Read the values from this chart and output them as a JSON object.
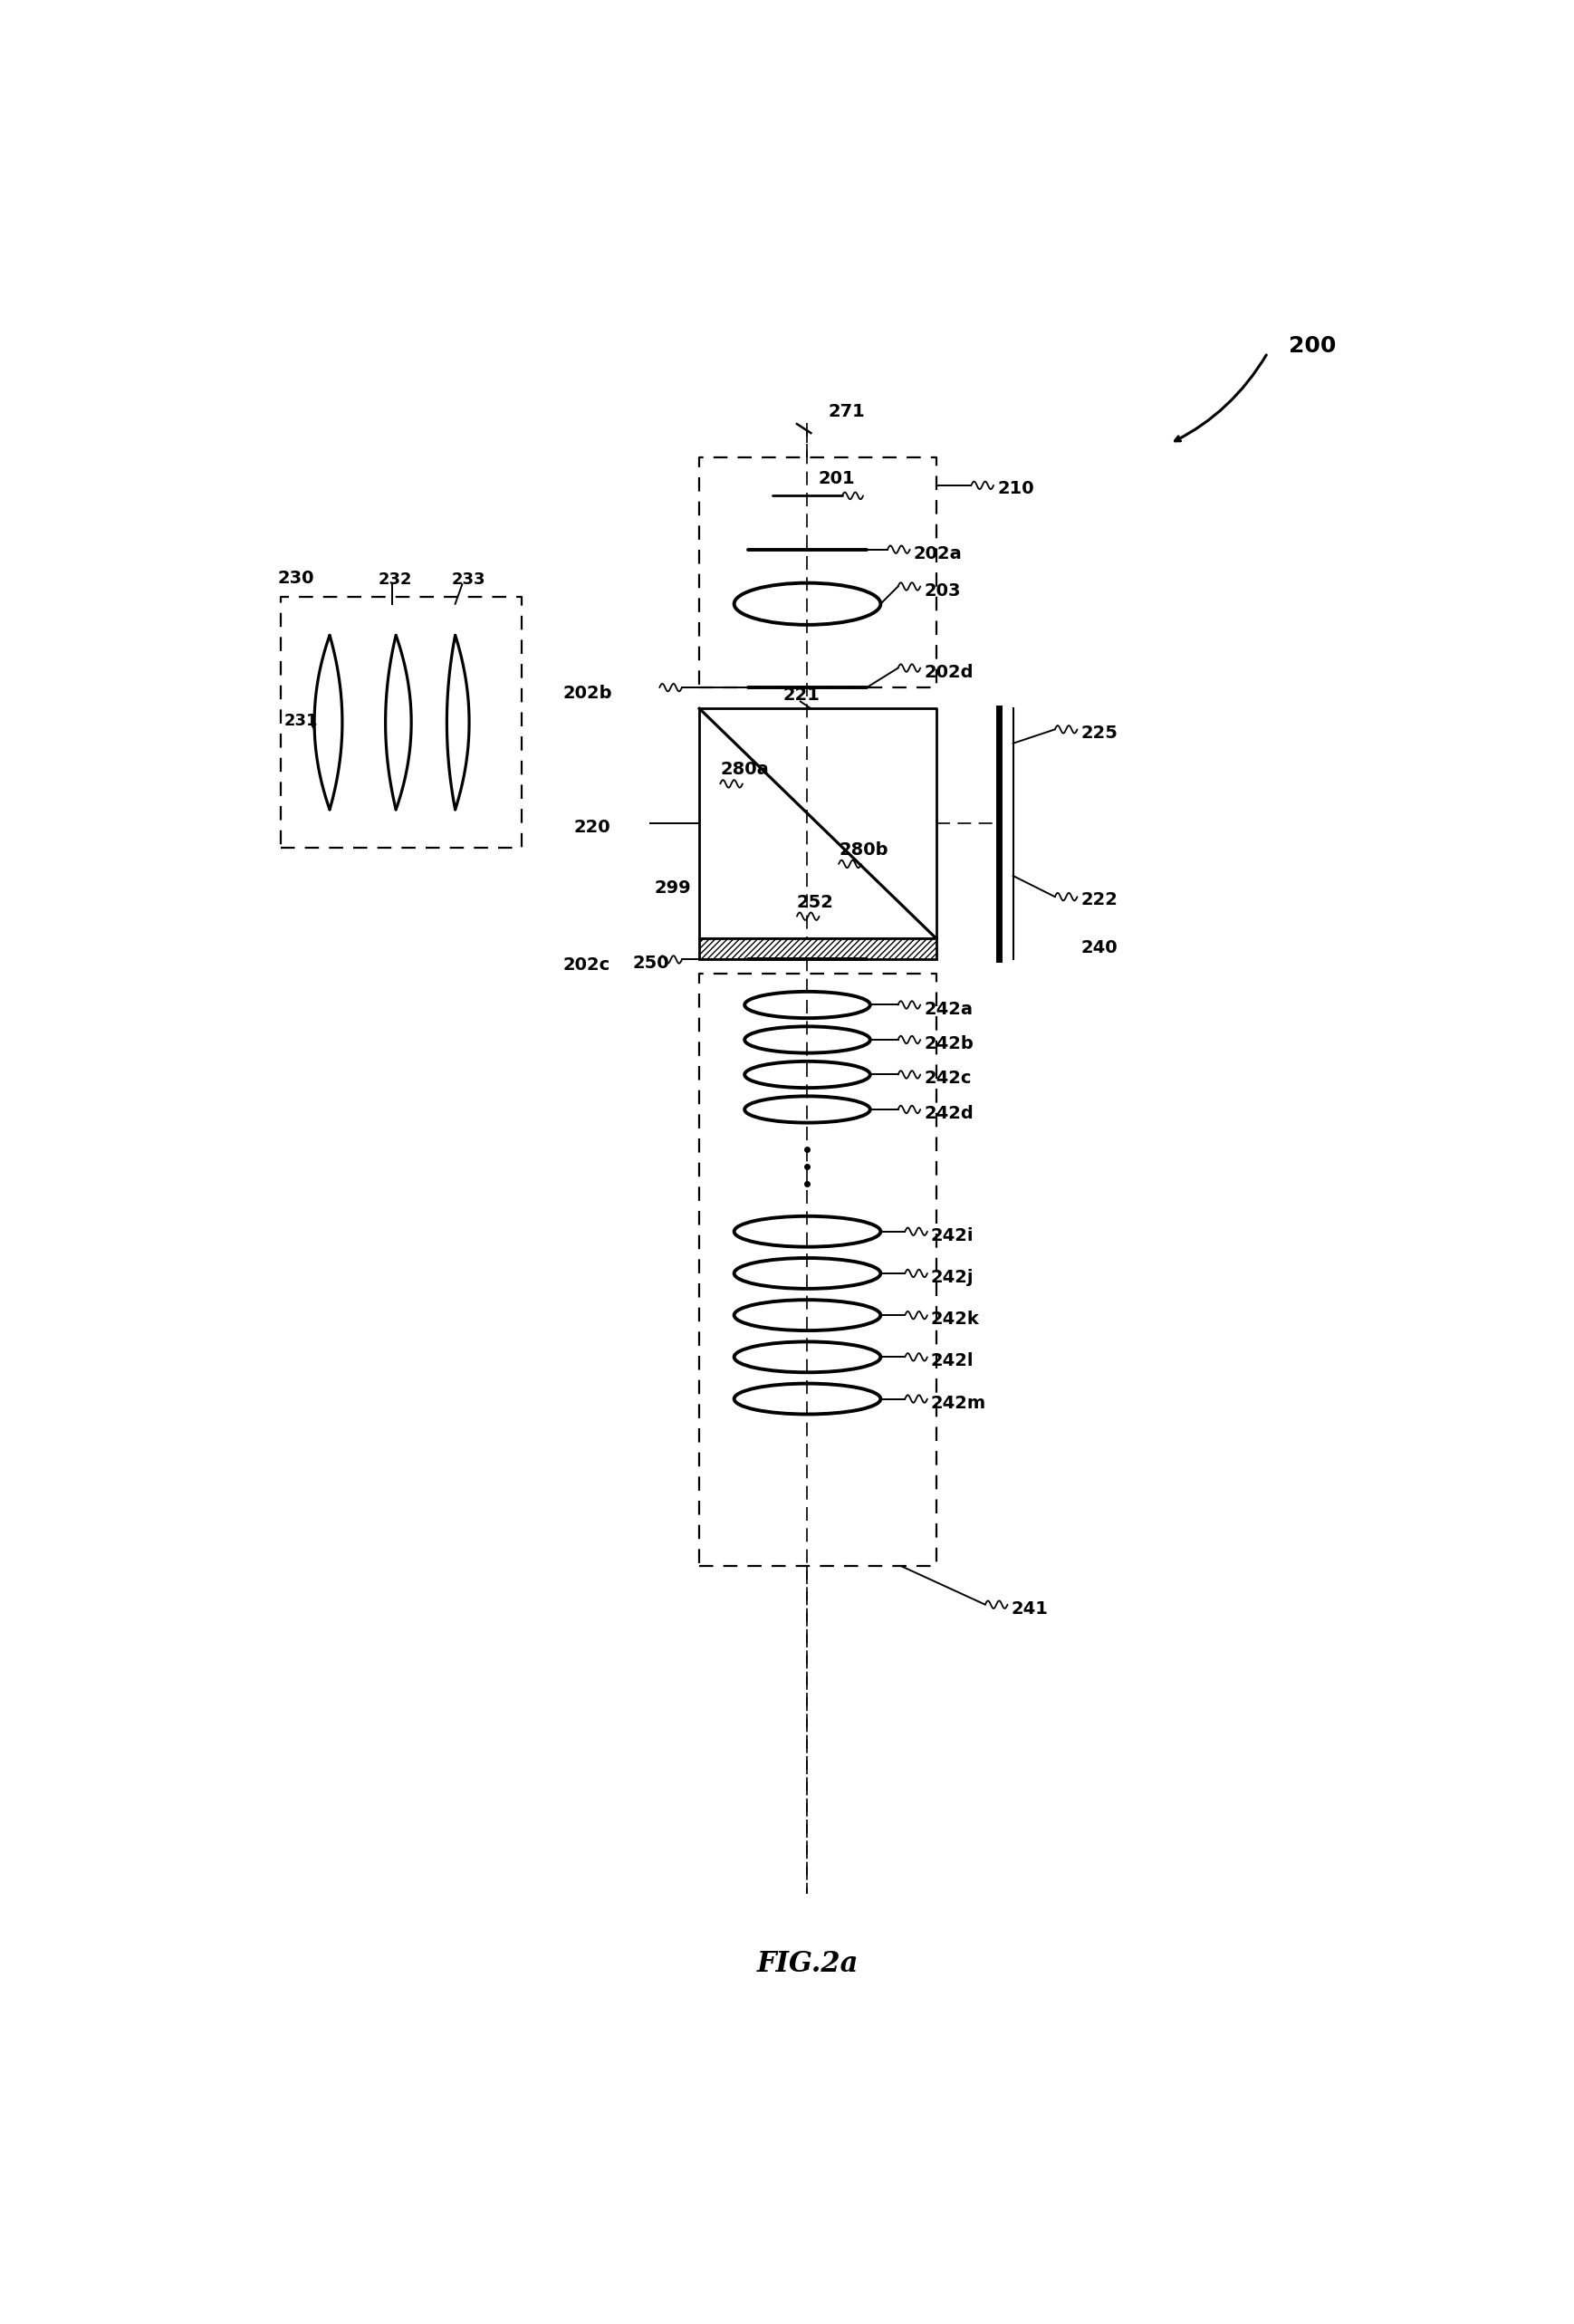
{
  "fig_width": 17.38,
  "fig_height": 25.66,
  "bg_color": "#ffffff",
  "title": "FIG.2a",
  "ref_200": "200",
  "ref_271": "271",
  "ref_201": "201",
  "ref_210": "210",
  "ref_202a": "202a",
  "ref_203": "203",
  "ref_202b": "202b",
  "ref_202d": "202d",
  "ref_225": "225",
  "ref_221": "221",
  "ref_220": "220",
  "ref_280a": "280a",
  "ref_280b": "280b",
  "ref_299": "299",
  "ref_252": "252",
  "ref_250": "250",
  "ref_222": "222",
  "ref_240": "240",
  "ref_202c": "202c",
  "ref_242a": "242a",
  "ref_242b": "242b",
  "ref_242c": "242c",
  "ref_242d": "242d",
  "ref_242i": "242i",
  "ref_242j": "242j",
  "ref_242k": "242k",
  "ref_242l": "242l",
  "ref_242m": "242m",
  "ref_241": "241",
  "ref_230": "230",
  "ref_231": "231",
  "ref_232": "232",
  "ref_233": "233"
}
